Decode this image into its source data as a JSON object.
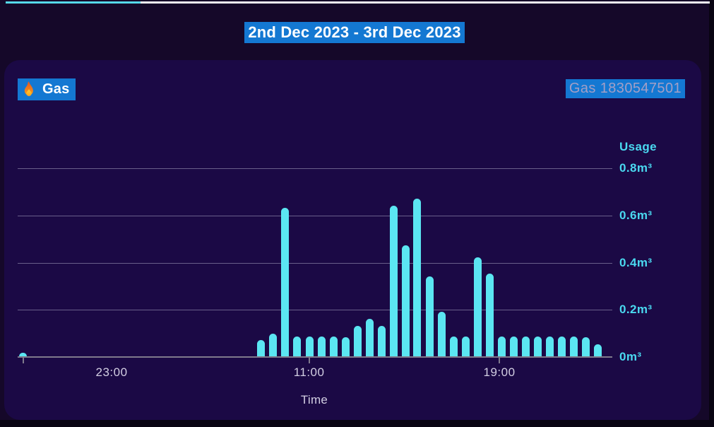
{
  "header": {
    "date_range_title": "2nd Dec 2023 - 3rd Dec 2023"
  },
  "panel": {
    "fuel_label": "Gas",
    "fuel_icon": "flame",
    "meter_id": "Gas 1830547501"
  },
  "chart_data": {
    "type": "bar",
    "title": "Gas",
    "xlabel": "Time",
    "ylabel": "Usage",
    "unit": "m³",
    "ylim": [
      0,
      0.9
    ],
    "grid": true,
    "y_ticks": [
      {
        "value": 0.8,
        "label": "0.8m³"
      },
      {
        "value": 0.6,
        "label": "0.6m³"
      },
      {
        "value": 0.4,
        "label": "0.4m³"
      },
      {
        "value": 0.2,
        "label": "0.2m³"
      },
      {
        "value": 0,
        "label": "0m³"
      }
    ],
    "x_tick_labels": [
      {
        "label": "23:00",
        "pos": 0.158,
        "tick": false
      },
      {
        "label": "11:00",
        "pos": 0.49,
        "tick": true
      },
      {
        "label": "19:00",
        "pos": 0.81,
        "tick": true
      }
    ],
    "extra_axis_tick_positions": [
      0.0095
    ],
    "bars": [
      {
        "time": "23:00",
        "pos": 0.0095,
        "value": 0.015
      },
      {
        "time": "09:00",
        "pos": 0.4097,
        "value": 0.07
      },
      {
        "time": "09:30",
        "pos": 0.4299,
        "value": 0.095
      },
      {
        "time": "10:00",
        "pos": 0.4501,
        "value": 0.63
      },
      {
        "time": "10:30",
        "pos": 0.4703,
        "value": 0.085
      },
      {
        "time": "11:00",
        "pos": 0.4905,
        "value": 0.085
      },
      {
        "time": "11:30",
        "pos": 0.5107,
        "value": 0.085
      },
      {
        "time": "12:00",
        "pos": 0.5309,
        "value": 0.085
      },
      {
        "time": "12:30",
        "pos": 0.5511,
        "value": 0.08
      },
      {
        "time": "13:00",
        "pos": 0.5713,
        "value": 0.13
      },
      {
        "time": "13:30",
        "pos": 0.5915,
        "value": 0.16
      },
      {
        "time": "14:00",
        "pos": 0.6117,
        "value": 0.13
      },
      {
        "time": "14:30",
        "pos": 0.6319,
        "value": 0.64
      },
      {
        "time": "15:00",
        "pos": 0.6521,
        "value": 0.47
      },
      {
        "time": "15:30",
        "pos": 0.6722,
        "value": 0.67
      },
      {
        "time": "16:00",
        "pos": 0.6924,
        "value": 0.34
      },
      {
        "time": "16:30",
        "pos": 0.7126,
        "value": 0.19
      },
      {
        "time": "17:00",
        "pos": 0.7328,
        "value": 0.085
      },
      {
        "time": "17:30",
        "pos": 0.753,
        "value": 0.085
      },
      {
        "time": "18:00",
        "pos": 0.7732,
        "value": 0.42
      },
      {
        "time": "18:30",
        "pos": 0.7934,
        "value": 0.35
      },
      {
        "time": "19:00",
        "pos": 0.8136,
        "value": 0.085
      },
      {
        "time": "19:30",
        "pos": 0.8338,
        "value": 0.085
      },
      {
        "time": "20:00",
        "pos": 0.854,
        "value": 0.085
      },
      {
        "time": "20:30",
        "pos": 0.8742,
        "value": 0.085
      },
      {
        "time": "21:00",
        "pos": 0.8944,
        "value": 0.085
      },
      {
        "time": "21:30",
        "pos": 0.9145,
        "value": 0.085
      },
      {
        "time": "22:00",
        "pos": 0.9347,
        "value": 0.085
      },
      {
        "time": "22:30",
        "pos": 0.9549,
        "value": 0.08
      },
      {
        "time": "23:00",
        "pos": 0.9751,
        "value": 0.05
      }
    ]
  },
  "colors": {
    "bar": "#5be6f2",
    "axis_label_cyan": "#4ad9f0",
    "selection_blue": "#1478d2",
    "panel_bg": "#1b0945",
    "page_bg": "#150829",
    "gridline": "rgba(170,165,195,0.55)",
    "baseline": "#7f7a8c",
    "x_label": "#d2cee2",
    "progress_cyan": "#56d9e9",
    "progress_white": "#f3f1f7"
  }
}
